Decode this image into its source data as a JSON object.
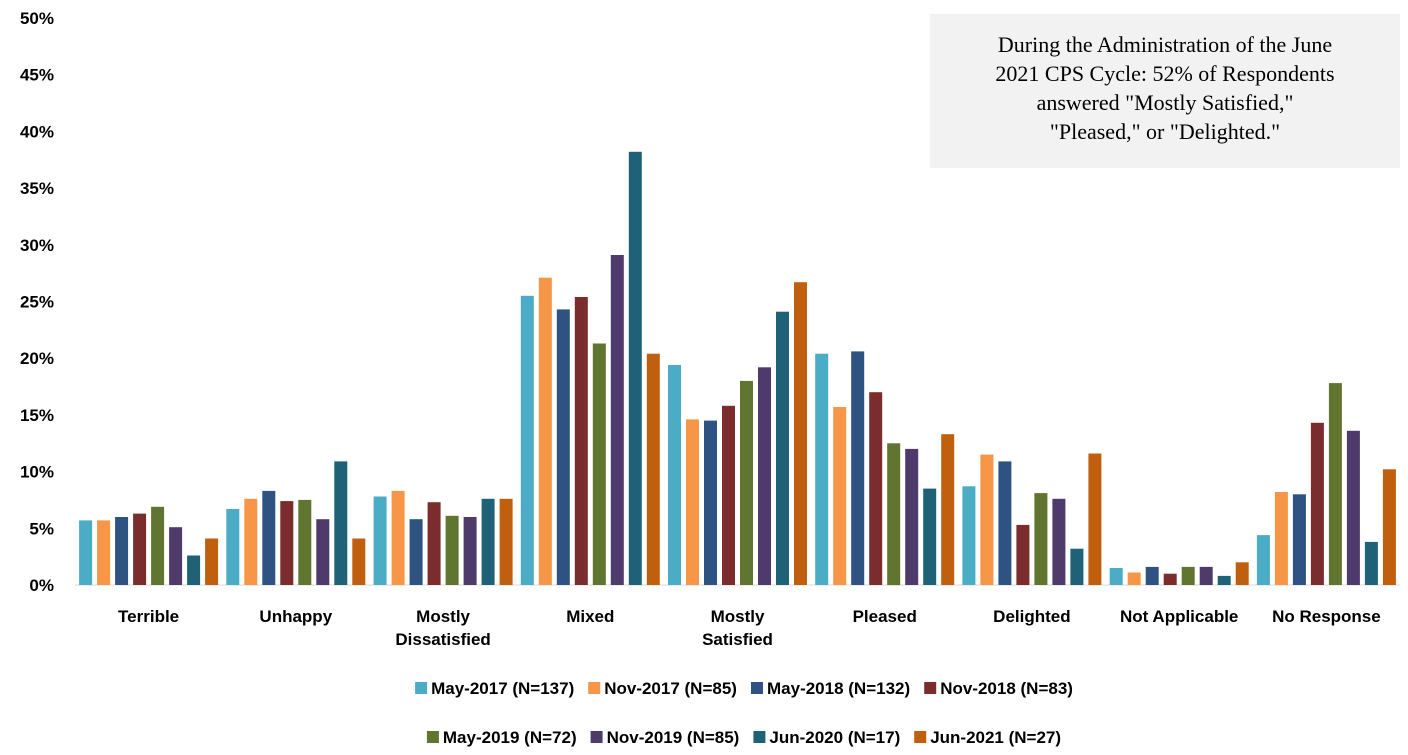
{
  "chart_data": {
    "type": "bar",
    "title": "",
    "xlabel": "",
    "ylabel": "",
    "ylim": [
      0,
      50
    ],
    "y_ticks": [
      "0%",
      "5%",
      "10%",
      "15%",
      "20%",
      "25%",
      "30%",
      "35%",
      "40%",
      "45%",
      "50%"
    ],
    "grid": false,
    "legend_position": "bottom",
    "categories": [
      [
        "Terrible"
      ],
      [
        "Unhappy"
      ],
      [
        "Mostly",
        "Dissatisfied"
      ],
      [
        "Mixed"
      ],
      [
        "Mostly",
        "Satisfied"
      ],
      [
        "Pleased"
      ],
      [
        "Delighted"
      ],
      [
        "Not Applicable"
      ],
      [
        "No Response"
      ]
    ],
    "series": [
      {
        "name": "May-2017 (N=137)",
        "color": "#4bacc6",
        "values": [
          5.7,
          6.7,
          7.8,
          25.5,
          19.4,
          20.4,
          8.7,
          1.5,
          4.4
        ]
      },
      {
        "name": "Nov-2017 (N=85)",
        "color": "#f79646",
        "values": [
          5.7,
          7.6,
          8.3,
          27.1,
          14.6,
          15.7,
          11.5,
          1.1,
          8.2
        ]
      },
      {
        "name": "May-2018 (N=132)",
        "color": "#2e5281",
        "values": [
          6.0,
          8.3,
          5.8,
          24.3,
          14.5,
          20.6,
          10.9,
          1.6,
          8.0
        ]
      },
      {
        "name": "Nov-2018 (N=83)",
        "color": "#7b2c2c",
        "values": [
          6.3,
          7.4,
          7.3,
          25.4,
          15.8,
          17.0,
          5.3,
          1.0,
          14.3
        ]
      },
      {
        "name": "May-2019 (N=72)",
        "color": "#5f7530",
        "values": [
          6.9,
          7.5,
          6.1,
          21.3,
          18.0,
          12.5,
          8.1,
          1.6,
          17.8
        ]
      },
      {
        "name": "Nov-2019 (N=85)",
        "color": "#4e3b6b",
        "values": [
          5.1,
          5.8,
          6.0,
          29.1,
          19.2,
          12.0,
          7.6,
          1.6,
          13.6
        ]
      },
      {
        "name": "Jun-2020 (N=17)",
        "color": "#1f6277",
        "values": [
          2.6,
          10.9,
          7.6,
          38.2,
          24.1,
          8.5,
          3.2,
          0.8,
          3.8
        ]
      },
      {
        "name": "Jun-2021 (N=27)",
        "color": "#c0600e",
        "values": [
          4.1,
          4.1,
          7.6,
          20.4,
          26.7,
          13.3,
          11.6,
          2.0,
          10.2
        ]
      }
    ],
    "annotation": [
      "During the Administration of the June",
      "2021 CPS Cycle: 52% of Respondents",
      "answered \"Mostly Satisfied,\"",
      "\"Pleased,\" or \"Delighted.\""
    ]
  }
}
